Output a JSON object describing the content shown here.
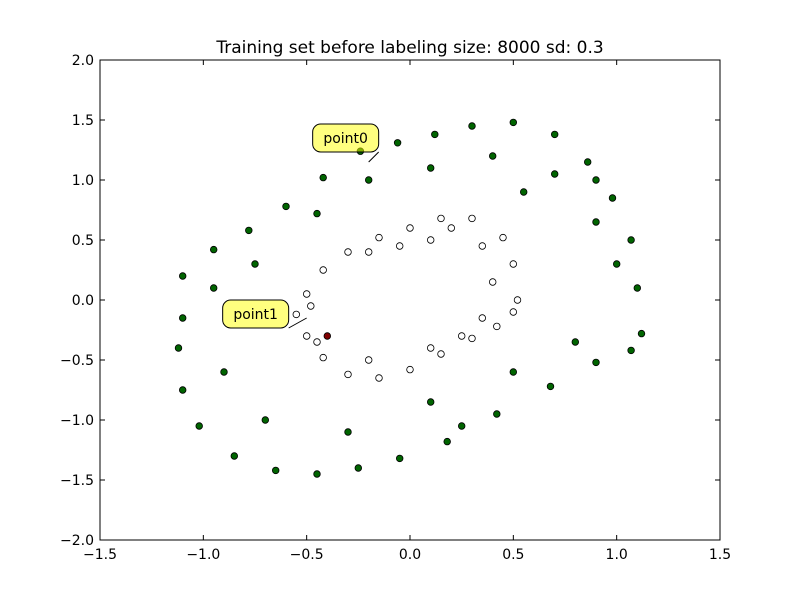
{
  "chart_data": {
    "type": "scatter",
    "title": "Training set before labeling size: 8000 sd: 0.3",
    "xlabel": "",
    "ylabel": "",
    "xlim": [
      -1.5,
      1.5
    ],
    "ylim": [
      -2.0,
      2.0
    ],
    "x_ticks": [
      -1.5,
      -1.0,
      -0.5,
      0.0,
      0.5,
      1.0,
      1.5
    ],
    "y_ticks": [
      -2.0,
      -1.5,
      -1.0,
      -0.5,
      0.0,
      0.5,
      1.0,
      1.5,
      2.0
    ],
    "x_tick_labels": [
      "−1.5",
      "−1.0",
      "−0.5",
      "0.0",
      "0.5",
      "1.0",
      "1.5"
    ],
    "y_tick_labels": [
      "−2.0",
      "−1.5",
      "−1.0",
      "−0.5",
      "0.0",
      "0.5",
      "1.0",
      "1.5",
      "2.0"
    ],
    "grid": false,
    "legend": "none",
    "series": [
      {
        "color": "#006400",
        "shape": "outer parallelogram band, hollow center",
        "values": [
          [
            -0.24,
            1.24
          ],
          [
            -0.06,
            1.31
          ],
          [
            0.12,
            1.38
          ],
          [
            0.3,
            1.45
          ],
          [
            0.5,
            1.48
          ],
          [
            0.7,
            1.38
          ],
          [
            0.86,
            1.15
          ],
          [
            0.98,
            0.85
          ],
          [
            1.07,
            0.5
          ],
          [
            1.1,
            0.1
          ],
          [
            1.12,
            -0.28
          ],
          [
            1.07,
            -0.42
          ],
          [
            0.9,
            -0.52
          ],
          [
            0.68,
            -0.72
          ],
          [
            0.42,
            -0.95
          ],
          [
            0.18,
            -1.18
          ],
          [
            -0.05,
            -1.32
          ],
          [
            -0.25,
            -1.4
          ],
          [
            -0.45,
            -1.45
          ],
          [
            -0.65,
            -1.42
          ],
          [
            -0.85,
            -1.3
          ],
          [
            -1.02,
            -1.05
          ],
          [
            -1.1,
            -0.75
          ],
          [
            -1.12,
            -0.4
          ],
          [
            -1.1,
            -0.15
          ],
          [
            -1.1,
            0.2
          ],
          [
            -0.95,
            0.42
          ],
          [
            -0.78,
            0.58
          ],
          [
            -0.6,
            0.78
          ],
          [
            -0.42,
            1.02
          ],
          [
            -0.2,
            1.0
          ],
          [
            0.1,
            1.1
          ],
          [
            0.4,
            1.2
          ],
          [
            0.7,
            1.05
          ],
          [
            0.9,
            0.65
          ],
          [
            1.0,
            0.3
          ],
          [
            -0.9,
            -0.6
          ],
          [
            -0.7,
            -1.0
          ],
          [
            -0.3,
            -1.1
          ],
          [
            0.1,
            -0.85
          ],
          [
            0.5,
            -0.6
          ],
          [
            0.8,
            -0.35
          ],
          [
            -0.75,
            0.3
          ],
          [
            -0.95,
            0.1
          ],
          [
            0.55,
            0.9
          ],
          [
            0.9,
            1.0
          ],
          [
            -0.45,
            0.72
          ],
          [
            0.25,
            -1.05
          ]
        ]
      },
      {
        "color": "#ffffff",
        "shape": "inner parallelogram band, hollow center",
        "values": [
          [
            -0.5,
            0.05
          ],
          [
            -0.42,
            0.25
          ],
          [
            -0.3,
            0.4
          ],
          [
            -0.15,
            0.52
          ],
          [
            0.0,
            0.6
          ],
          [
            0.15,
            0.68
          ],
          [
            0.3,
            0.68
          ],
          [
            0.45,
            0.52
          ],
          [
            0.5,
            0.3
          ],
          [
            0.52,
            0.0
          ],
          [
            0.5,
            -0.1
          ],
          [
            0.42,
            -0.22
          ],
          [
            0.3,
            -0.32
          ],
          [
            0.15,
            -0.45
          ],
          [
            0.0,
            -0.58
          ],
          [
            -0.15,
            -0.65
          ],
          [
            -0.3,
            -0.62
          ],
          [
            -0.42,
            -0.48
          ],
          [
            -0.5,
            -0.3
          ],
          [
            -0.55,
            -0.12
          ],
          [
            -0.2,
            0.4
          ],
          [
            0.1,
            0.5
          ],
          [
            0.35,
            0.45
          ],
          [
            0.4,
            0.15
          ],
          [
            0.35,
            -0.15
          ],
          [
            0.1,
            -0.4
          ],
          [
            -0.2,
            -0.5
          ],
          [
            -0.45,
            -0.35
          ],
          [
            -0.48,
            -0.05
          ],
          [
            0.2,
            0.6
          ],
          [
            -0.05,
            0.45
          ],
          [
            0.25,
            -0.3
          ]
        ]
      },
      {
        "color": "#800000",
        "shape": "single highlighted point",
        "values": [
          [
            -0.4,
            -0.3
          ]
        ]
      }
    ],
    "annotations": [
      {
        "text": "point0",
        "x": -0.2,
        "y": 1.15,
        "color": "#ffff00"
      },
      {
        "text": "point1",
        "x": -0.5,
        "y": -0.15,
        "color": "#ffff00"
      }
    ]
  }
}
